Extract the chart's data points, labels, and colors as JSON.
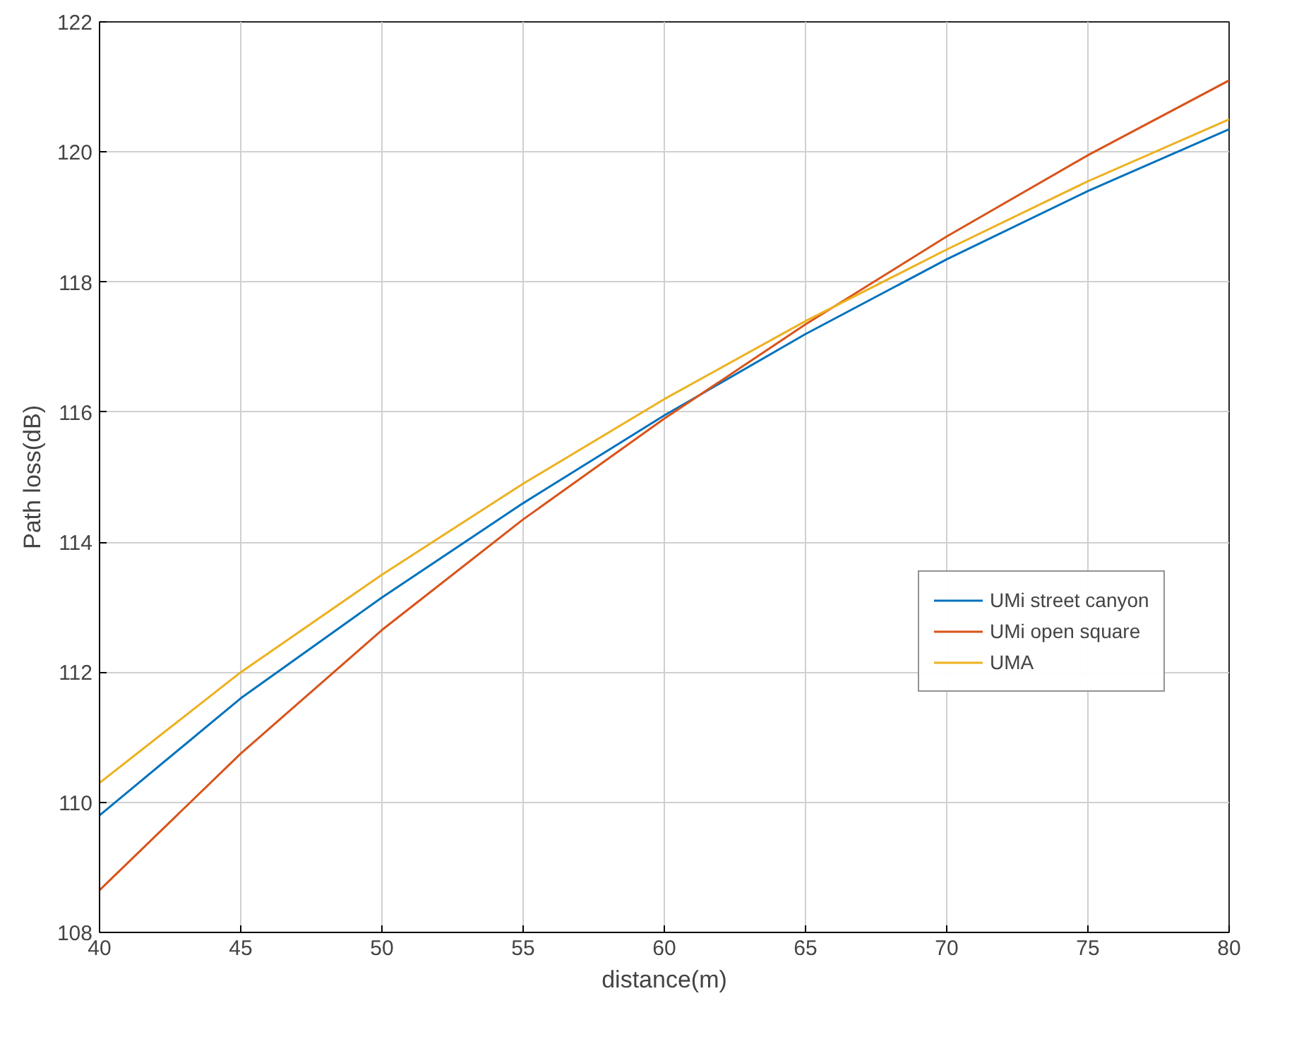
{
  "chart_data": {
    "type": "line",
    "xlabel": "distance(m)",
    "ylabel": "Path loss(dB)",
    "x": [
      40,
      45,
      50,
      55,
      60,
      65,
      70,
      75,
      80
    ],
    "series": [
      {
        "name": "UMi street canyon",
        "color": "#0072bd",
        "values": [
          109.8,
          111.6,
          113.15,
          114.6,
          115.95,
          117.2,
          118.35,
          119.4,
          120.35
        ]
      },
      {
        "name": "UMi open square",
        "color": "#d95319",
        "values": [
          108.65,
          110.75,
          112.65,
          114.35,
          115.9,
          117.35,
          118.7,
          119.95,
          121.1
        ]
      },
      {
        "name": "UMA",
        "color": "#edb120",
        "values": [
          110.3,
          112.0,
          113.5,
          114.9,
          116.2,
          117.4,
          118.5,
          119.55,
          120.5
        ]
      }
    ],
    "xlim": [
      40,
      80
    ],
    "ylim": [
      108,
      122
    ],
    "xticks": [
      40,
      45,
      50,
      55,
      60,
      65,
      70,
      75,
      80
    ],
    "yticks": [
      108,
      110,
      112,
      114,
      116,
      118,
      120,
      122
    ],
    "grid": true,
    "legend": "right",
    "line_style": "solid",
    "marker": "none"
  }
}
